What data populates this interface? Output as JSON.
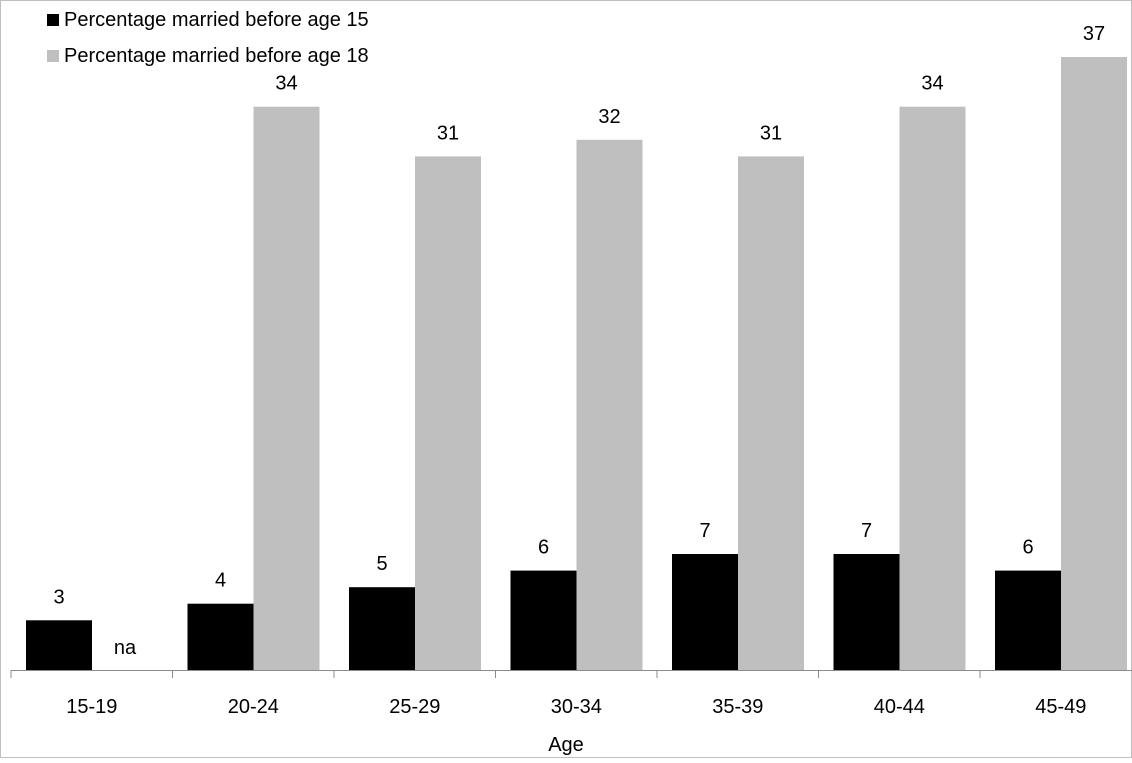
{
  "chart_data": {
    "type": "bar",
    "title": "",
    "xlabel": "Age",
    "ylabel": "",
    "ylim": [
      0,
      37
    ],
    "grid": false,
    "legend_position": "top-left",
    "categories": [
      "15-19",
      "20-24",
      "25-29",
      "30-34",
      "35-39",
      "40-44",
      "45-49"
    ],
    "series": [
      {
        "name": "Percentage married before age 15",
        "color": "#000000",
        "values": [
          3,
          4,
          5,
          6,
          7,
          7,
          6
        ],
        "labels": [
          "3",
          "4",
          "5",
          "6",
          "7",
          "7",
          "6"
        ]
      },
      {
        "name": "Percentage married before age 18",
        "color": "#bfbfbf",
        "values": [
          null,
          34,
          31,
          32,
          31,
          34,
          37
        ],
        "labels": [
          "na",
          "34",
          "31",
          "32",
          "31",
          "34",
          "37"
        ]
      }
    ]
  }
}
